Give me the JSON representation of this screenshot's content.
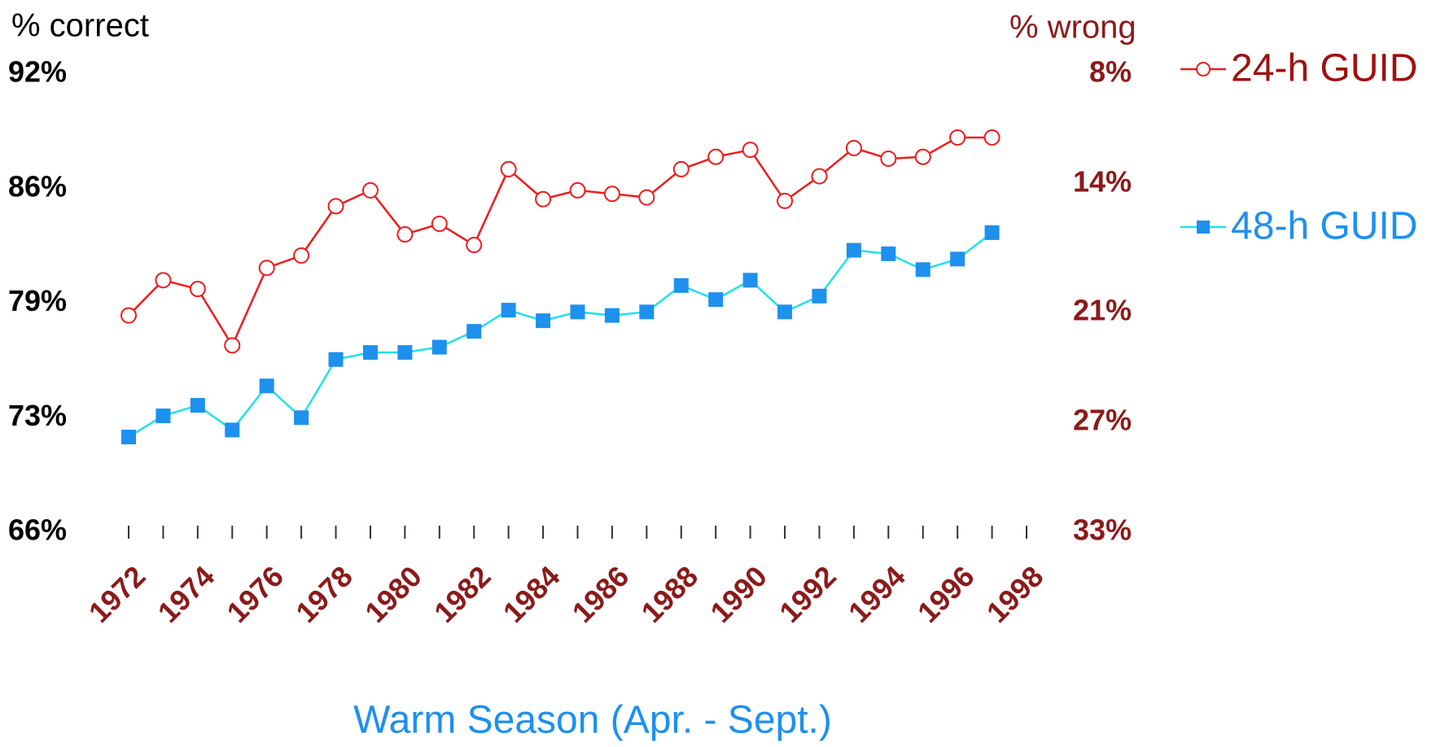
{
  "chart_data": {
    "type": "line",
    "title": "Warm Season (Apr. - Sept.)",
    "y_label": "% correct",
    "y2_label": "% wrong",
    "x": [
      1972,
      1973,
      1974,
      1975,
      1976,
      1977,
      1978,
      1979,
      1980,
      1981,
      1982,
      1983,
      1984,
      1985,
      1986,
      1987,
      1988,
      1989,
      1990,
      1991,
      1992,
      1993,
      1994,
      1995,
      1996,
      1997
    ],
    "series": [
      {
        "name": "24-h GUID",
        "color": "#ee1c1c",
        "marker_color": "#ee1c1c",
        "marker": "circle",
        "values": [
          78.3,
          80.3,
          79.8,
          76.6,
          81.0,
          81.7,
          84.5,
          85.4,
          82.9,
          83.5,
          82.3,
          86.6,
          84.9,
          85.4,
          85.2,
          85.0,
          86.6,
          87.3,
          87.7,
          84.8,
          86.2,
          87.8,
          87.2,
          87.3,
          88.4,
          88.4
        ]
      },
      {
        "name": "48-h GUID",
        "color": "#22e0e8",
        "marker_color": "#1e90ee",
        "marker": "square",
        "values": [
          71.4,
          72.6,
          73.2,
          71.8,
          74.3,
          72.5,
          75.8,
          76.2,
          76.2,
          76.5,
          77.4,
          78.6,
          78.0,
          78.5,
          78.3,
          78.5,
          80.0,
          79.2,
          80.3,
          78.5,
          79.4,
          82.0,
          81.8,
          80.9,
          81.5,
          83.0
        ]
      }
    ],
    "xlim": [
      1972,
      1998
    ],
    "xticks": [
      1972,
      1974,
      1976,
      1978,
      1980,
      1982,
      1984,
      1986,
      1988,
      1990,
      1992,
      1994,
      1996,
      1998
    ],
    "minor_xticks": [
      1973,
      1975,
      1977,
      1979,
      1981,
      1983,
      1985,
      1987,
      1989,
      1991,
      1993,
      1995,
      1997
    ],
    "ylim": [
      66,
      92
    ],
    "yticks": [
      {
        "value": 66,
        "label": "66%"
      },
      {
        "value": 72.5,
        "label": "73%"
      },
      {
        "value": 79,
        "label": "79%"
      },
      {
        "value": 85.5,
        "label": "86%"
      },
      {
        "value": 92,
        "label": "92%"
      }
    ],
    "y2lim": [
      33,
      8
    ],
    "y2ticks": [
      {
        "value": 33,
        "label": "33%"
      },
      {
        "value": 27,
        "label": "27%"
      },
      {
        "value": 21,
        "label": "21%"
      },
      {
        "value": 14,
        "label": "14%"
      },
      {
        "value": 8,
        "label": "8%"
      }
    ],
    "legend": "right",
    "grid": false
  }
}
